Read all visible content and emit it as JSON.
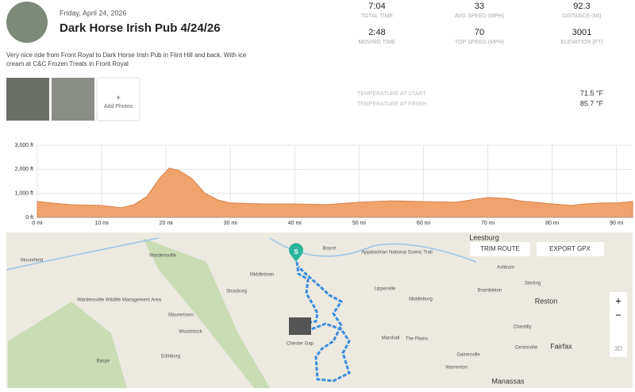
{
  "header": {
    "date": "Friday, April 24, 2026",
    "title": "Dark Horse Irish Pub 4/24/26"
  },
  "stats": [
    {
      "value": "7:04",
      "label": "TOTAL TIME"
    },
    {
      "value": "33",
      "label": "AVG SPEED (MPH)"
    },
    {
      "value": "92.3",
      "label": "DISTANCE (MI)"
    },
    {
      "value": "2:48",
      "label": "MOVING TIME"
    },
    {
      "value": "70",
      "label": "TOP SPEED (MPH)"
    },
    {
      "value": "3001",
      "label": "ELEVATION (FT)"
    }
  ],
  "description": "Very nice ride from Front Royal to Dark Horse Irish Pub in Flint Hill and back. With ice cream at C&C Frozen Treats in Front Royal",
  "photos": {
    "add_icon": "+",
    "add_label": "Add Photos"
  },
  "temperature": [
    {
      "label": "TEMPERATURE AT START",
      "value": "71.5 °F"
    },
    {
      "label": "TEMPERATURE AT FINISH",
      "value": "85.7 °F"
    }
  ],
  "chart_data": {
    "type": "area",
    "color": "#f0a36c",
    "x": [
      0,
      5,
      10,
      13,
      15,
      17,
      19,
      20.5,
      22,
      24,
      26,
      28,
      30,
      35,
      40,
      45,
      50,
      55,
      60,
      65,
      70,
      73,
      75,
      80,
      83,
      85,
      88,
      90,
      92.5
    ],
    "values": [
      660,
      530,
      500,
      400,
      530,
      860,
      1620,
      2050,
      1950,
      1620,
      1020,
      730,
      600,
      560,
      560,
      530,
      630,
      690,
      660,
      630,
      830,
      790,
      690,
      560,
      500,
      560,
      600,
      600,
      660
    ],
    "xlim": [
      0,
      92.5
    ],
    "ylim": [
      0,
      3000
    ],
    "xticks": [
      {
        "value": 0,
        "label": "0 mi"
      },
      {
        "value": 10,
        "label": "10 mi"
      },
      {
        "value": 20,
        "label": "20 mi"
      },
      {
        "value": 30,
        "label": "30 mi"
      },
      {
        "value": 40,
        "label": "40 mi"
      },
      {
        "value": 50,
        "label": "50 mi"
      },
      {
        "value": 60,
        "label": "60 mi"
      },
      {
        "value": 70,
        "label": "70 mi"
      },
      {
        "value": 80,
        "label": "80 mi"
      },
      {
        "value": 90,
        "label": "90 mi"
      }
    ],
    "yticks": [
      {
        "value": 0,
        "label": "0 ft"
      },
      {
        "value": 1000,
        "label": "1,000 ft"
      },
      {
        "value": 2000,
        "label": "2,000 ft"
      },
      {
        "value": 3000,
        "label": "3,000 ft"
      }
    ],
    "grid": true
  },
  "map": {
    "buttons": [
      "TRIM ROUTE",
      "EXPORT GPX"
    ],
    "controls": [
      "+",
      "−",
      "3D"
    ],
    "start_marker": "S",
    "labels": [
      "Leesburg",
      "Moorefield",
      "Wardensville",
      "Middletown",
      "Boyce",
      "Appalachian National Scenic Trail",
      "Strasburg",
      "Upperville",
      "Middleburg",
      "Ashburn",
      "Sterling",
      "Brambleton",
      "Reston",
      "Wardensville Wildlife Management Area",
      "Woodstock",
      "Maurertown",
      "Chantilly",
      "Fairfax",
      "Centreville",
      "Marshall",
      "The Plains",
      "Warrenton",
      "Edinburg",
      "Basye",
      "Chester Gap",
      "Gainesville",
      "Manassas"
    ]
  }
}
